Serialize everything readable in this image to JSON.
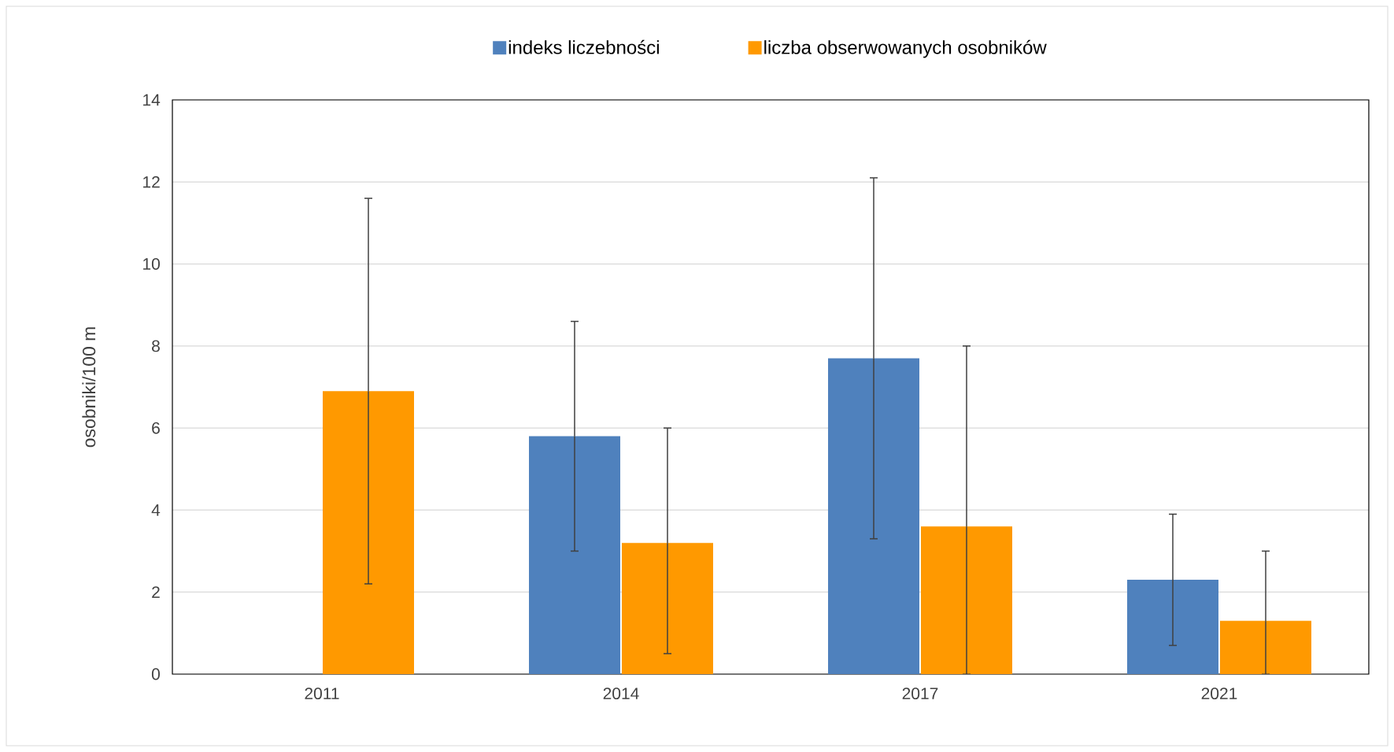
{
  "chart_data": {
    "type": "bar",
    "ylabel": "osobniki/100 m",
    "categories": [
      "2011",
      "2014",
      "2017",
      "2021"
    ],
    "series": [
      {
        "name": "indeks liczebności",
        "color": "#4f81bd",
        "values": [
          null,
          5.8,
          7.7,
          2.3
        ],
        "errors": [
          null,
          [
            3.0,
            8.6
          ],
          [
            3.3,
            12.1
          ],
          [
            0.7,
            3.9
          ]
        ]
      },
      {
        "name": "liczba obserwowanych osobników",
        "color": "#ff9900",
        "values": [
          6.9,
          3.2,
          3.6,
          1.3
        ],
        "errors": [
          [
            2.2,
            11.6
          ],
          [
            0.5,
            6.0
          ],
          [
            0,
            8.0
          ],
          [
            0,
            3.0
          ]
        ]
      }
    ],
    "ylim": [
      0,
      14
    ],
    "yticks": [
      0,
      2,
      4,
      6,
      8,
      10,
      12,
      14
    ],
    "grid": "y",
    "legend": "top"
  }
}
